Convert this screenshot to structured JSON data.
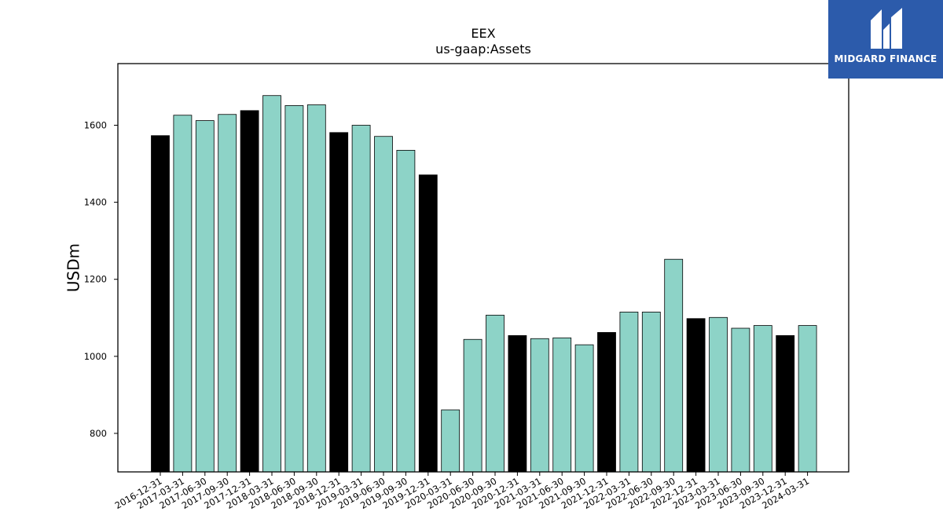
{
  "brand": {
    "name": "MIDGARD FINANCE",
    "color": "#2c5bab",
    "icon": "midgard-logo-icon"
  },
  "chart_data": {
    "type": "bar",
    "title": "EEX",
    "subtitle": "us-gaap:Assets",
    "xlabel": "",
    "ylabel": "USDm",
    "ylim": [
      700,
      1760
    ],
    "yticks": [
      800,
      1000,
      1200,
      1400,
      1600
    ],
    "grid": false,
    "colors": {
      "year_end": "#000000",
      "quarter": "#8dd3c7"
    },
    "categories": [
      "2016-12-31",
      "2017-03-31",
      "2017-06-30",
      "2017-09-30",
      "2017-12-31",
      "2018-03-31",
      "2018-06-30",
      "2018-09-30",
      "2018-12-31",
      "2019-03-31",
      "2019-06-30",
      "2019-09-30",
      "2019-12-31",
      "2020-03-31",
      "2020-06-30",
      "2020-09-30",
      "2020-12-31",
      "2021-03-31",
      "2021-06-30",
      "2021-09-30",
      "2021-12-31",
      "2022-03-31",
      "2022-06-30",
      "2022-09-30",
      "2022-12-31",
      "2023-03-31",
      "2023-06-30",
      "2023-09-30",
      "2023-12-31",
      "2024-03-31"
    ],
    "values": [
      1573,
      1626,
      1612,
      1628,
      1638,
      1677,
      1651,
      1653,
      1581,
      1600,
      1571,
      1535,
      1471,
      861,
      1044,
      1107,
      1054,
      1046,
      1048,
      1030,
      1062,
      1115,
      1115,
      1252,
      1098,
      1101,
      1073,
      1080,
      1054,
      1080
    ]
  }
}
